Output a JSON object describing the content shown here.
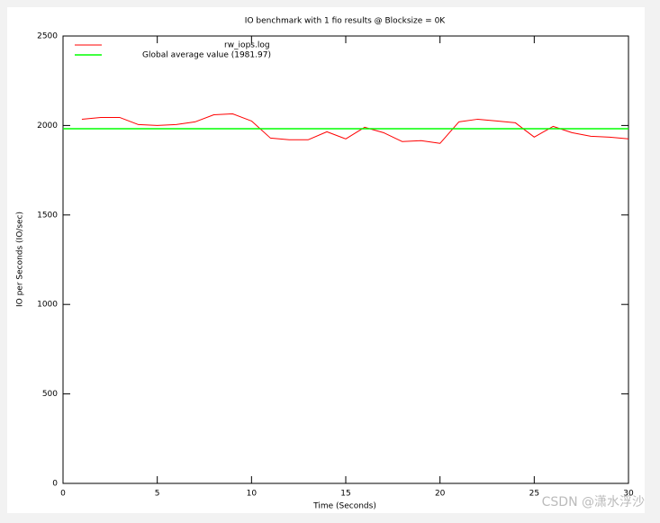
{
  "chart_data": {
    "type": "line",
    "title": "IO benchmark with 1 fio results @ Blocksize = 0K",
    "x_label": "Time (Seconds)",
    "y_label": "IO per Seconds (IO/sec)",
    "x": [
      1,
      2,
      3,
      4,
      5,
      6,
      7,
      8,
      9,
      10,
      11,
      12,
      13,
      14,
      15,
      16,
      17,
      18,
      19,
      20,
      21,
      22,
      23,
      24,
      25,
      26,
      27,
      28,
      29,
      30
    ],
    "series": [
      {
        "name": "rw_iops.log",
        "color": "#ff0000",
        "values": [
          2035,
          2045,
          2045,
          2005,
          2000,
          2005,
          2020,
          2060,
          2065,
          2025,
          1930,
          1920,
          1920,
          1965,
          1925,
          1990,
          1960,
          1910,
          1915,
          1900,
          2020,
          2035,
          2025,
          2015,
          1935,
          1995,
          1960,
          1940,
          1935,
          1925
        ]
      }
    ],
    "average": {
      "name": "Global average value (1981.97)",
      "value": 1981.97,
      "color": "#00ff00"
    },
    "xlim": [
      0,
      30
    ],
    "xticks": [
      0,
      5,
      10,
      15,
      20,
      25,
      30
    ],
    "ylim": [
      0,
      2500
    ],
    "yticks": [
      0,
      500,
      1000,
      1500,
      2000,
      2500
    ],
    "grid": false,
    "watermark": "CSDN @潇水浮沙"
  }
}
